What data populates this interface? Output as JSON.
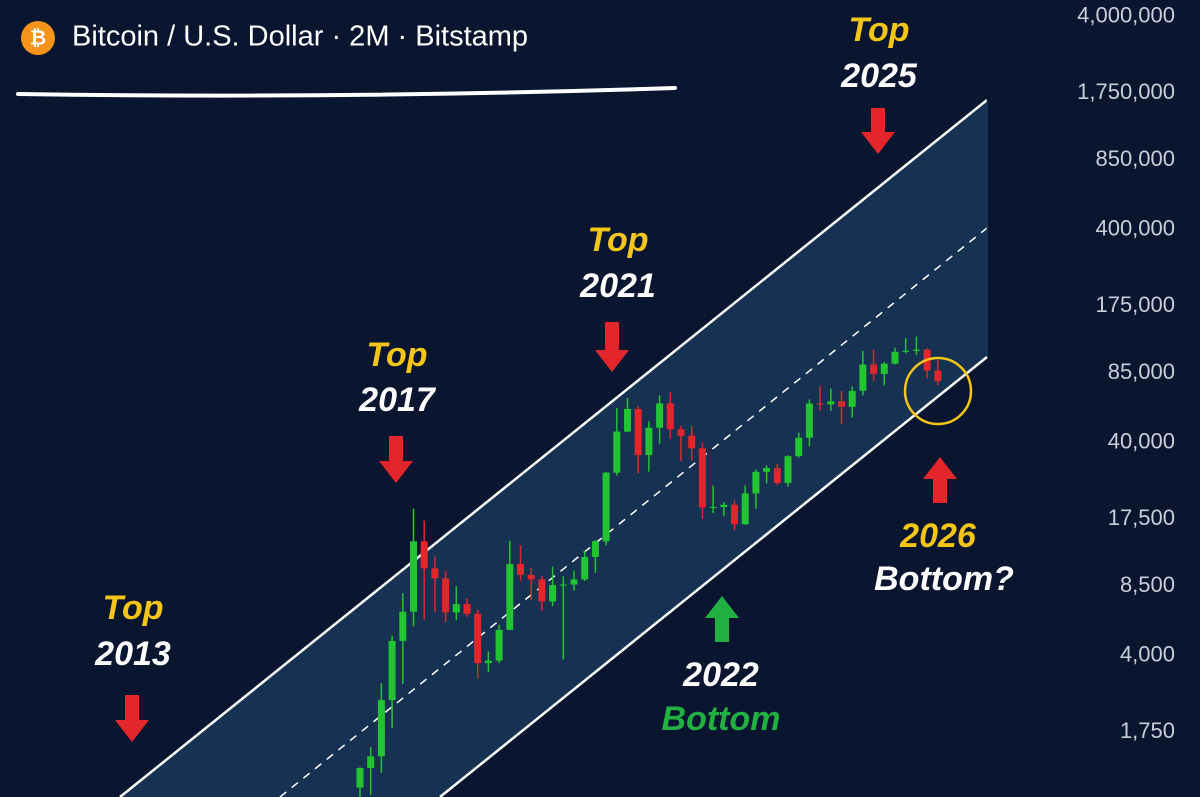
{
  "chart_data": {
    "type": "candlestick",
    "title": "Bitcoin / U.S. Dollar · 2M · Bitstamp",
    "symbol_icon": "₿",
    "log_scale": true,
    "ylim": [
      870,
      4800000
    ],
    "yticks": [
      {
        "value": 4000000,
        "label": "4,000,000"
      },
      {
        "value": 1750000,
        "label": "1,750,000"
      },
      {
        "value": 850000,
        "label": "850,000"
      },
      {
        "value": 400000,
        "label": "400,000"
      },
      {
        "value": 175000,
        "label": "175,000"
      },
      {
        "value": 85000,
        "label": "85,000"
      },
      {
        "value": 40000,
        "label": "40,000"
      },
      {
        "value": 17500,
        "label": "17,500"
      },
      {
        "value": 8500,
        "label": "8,500"
      },
      {
        "value": 4000,
        "label": "4,000"
      },
      {
        "value": 1750,
        "label": "1,750"
      }
    ],
    "up_color": "#22c431",
    "down_color": "#e3262c",
    "open": [
      963,
      1190,
      1350,
      2480,
      4700,
      6450,
      13800,
      10300,
      9250,
      6400,
      7000,
      6300,
      3700,
      3800,
      5300,
      10800,
      9600,
      9150,
      7200,
      8600,
      8650,
      9140,
      11650,
      13800,
      28990,
      45200,
      57700,
      35040,
      47100,
      61300,
      46300,
      43200,
      37700,
      19900,
      20000,
      20500,
      16600,
      23150,
      29250,
      30470,
      25940,
      34650,
      42280,
      61200,
      60600,
      62700,
      59000,
      70200,
      93400,
      84300,
      94200,
      107100,
      108200,
      109600,
      87500
    ],
    "high": [
      1200,
      1490,
      2980,
      4980,
      7880,
      19666,
      17250,
      11700,
      9990,
      8500,
      7450,
      6600,
      4200,
      5600,
      13880,
      13200,
      10400,
      9500,
      10500,
      9450,
      10050,
      12470,
      14000,
      29300,
      58350,
      64900,
      59500,
      50500,
      66900,
      69000,
      48000,
      48200,
      40000,
      25200,
      21100,
      21450,
      25250,
      30000,
      31400,
      31800,
      35000,
      44700,
      64000,
      73800,
      72000,
      70000,
      73600,
      108300,
      109600,
      95800,
      111900,
      124000,
      126200,
      111000,
      97900
    ],
    "low": [
      750,
      890,
      1130,
      1830,
      2950,
      5500,
      5900,
      6400,
      5750,
      5880,
      6100,
      3120,
      3350,
      3700,
      5300,
      9000,
      7300,
      6500,
      6850,
      3850,
      8100,
      9000,
      9800,
      13200,
      28100,
      44900,
      28800,
      29300,
      39600,
      42000,
      32900,
      33100,
      17600,
      18700,
      18100,
      15500,
      16500,
      19600,
      25800,
      25300,
      24900,
      34100,
      38500,
      56500,
      56500,
      49000,
      52600,
      66800,
      78200,
      74400,
      93300,
      105300,
      103500,
      80600,
      74500
    ],
    "close": [
      1190,
      1350,
      2480,
      4700,
      6450,
      13800,
      10300,
      9250,
      6400,
      7000,
      6300,
      3700,
      3800,
      5300,
      10800,
      9600,
      9150,
      7200,
      8600,
      8650,
      9140,
      11650,
      13800,
      28990,
      45200,
      57700,
      35040,
      47100,
      61300,
      46300,
      43200,
      37700,
      19900,
      20000,
      20500,
      16600,
      23150,
      29250,
      30470,
      25940,
      34650,
      42280,
      61200,
      60600,
      62700,
      59000,
      70200,
      93400,
      84300,
      94200,
      107100,
      108200,
      109600,
      87500,
      78000
    ],
    "annotations": [
      "Top",
      "2013",
      "Top",
      "2017",
      "Top",
      "2021",
      "Top",
      "2025",
      "2022",
      "Bottom",
      "2026",
      "Bottom?"
    ]
  }
}
